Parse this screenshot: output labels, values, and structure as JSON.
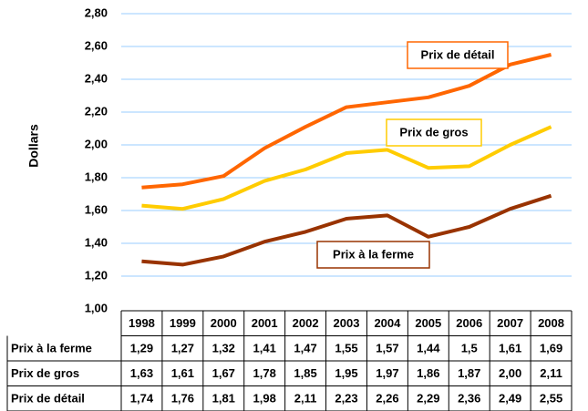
{
  "chart_data": {
    "type": "line",
    "y_label": "Dollars",
    "categories": [
      "1998",
      "1999",
      "2000",
      "2001",
      "2002",
      "2003",
      "2004",
      "2005",
      "2006",
      "2007",
      "2008"
    ],
    "series": [
      {
        "name": "Prix à la ferme",
        "color": "#993300",
        "values": [
          1.29,
          1.27,
          1.32,
          1.41,
          1.47,
          1.55,
          1.57,
          1.44,
          1.5,
          1.61,
          1.69
        ],
        "value_labels": [
          "1,29",
          "1,27",
          "1,32",
          "1,41",
          "1,47",
          "1,55",
          "1,57",
          "1,44",
          "1,5",
          "1,61",
          "1,69"
        ]
      },
      {
        "name": "Prix de gros",
        "color": "#ffcc00",
        "values": [
          1.63,
          1.61,
          1.67,
          1.78,
          1.85,
          1.95,
          1.97,
          1.86,
          1.87,
          2.0,
          2.11
        ],
        "value_labels": [
          "1,63",
          "1,61",
          "1,67",
          "1,78",
          "1,85",
          "1,95",
          "1,97",
          "1,86",
          "1,87",
          "2,00",
          "2,11"
        ]
      },
      {
        "name": "Prix de détail",
        "color": "#ff6600",
        "values": [
          1.74,
          1.76,
          1.81,
          1.98,
          2.11,
          2.23,
          2.26,
          2.29,
          2.36,
          2.49,
          2.55
        ],
        "value_labels": [
          "1,74",
          "1,76",
          "1,81",
          "1,98",
          "2,11",
          "2,23",
          "2,26",
          "2,29",
          "2,36",
          "2,49",
          "2,55"
        ]
      }
    ],
    "ylim": [
      1.0,
      2.8
    ],
    "yticks": [
      {
        "value": 1.0,
        "label": "1,00"
      },
      {
        "value": 1.2,
        "label": "1,20"
      },
      {
        "value": 1.4,
        "label": "1,40"
      },
      {
        "value": 1.6,
        "label": "1,60"
      },
      {
        "value": 1.8,
        "label": "1,80"
      },
      {
        "value": 2.0,
        "label": "2,00"
      },
      {
        "value": 2.2,
        "label": "2,20"
      },
      {
        "value": 2.4,
        "label": "2,40"
      },
      {
        "value": 2.6,
        "label": "2,60"
      },
      {
        "value": 2.8,
        "label": "2,80"
      }
    ],
    "grid": true
  }
}
